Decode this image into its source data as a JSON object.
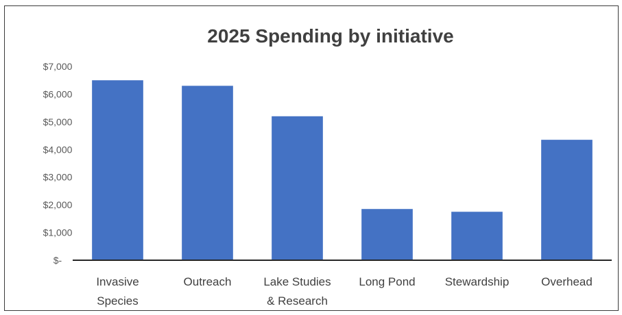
{
  "chart_data": {
    "type": "bar",
    "title": "2025 Spending by initiative",
    "xlabel": "",
    "ylabel": "",
    "categories": [
      [
        "Invasive",
        "Species"
      ],
      [
        "Outreach"
      ],
      [
        "Lake Studies",
        "& Research"
      ],
      [
        "Long Pond"
      ],
      [
        "Stewardship"
      ],
      [
        "Overhead"
      ]
    ],
    "values": [
      6500,
      6300,
      5200,
      1850,
      1750,
      4350
    ],
    "ylim": [
      0,
      7000
    ],
    "yticks": [
      0,
      1000,
      2000,
      3000,
      4000,
      5000,
      6000,
      7000
    ],
    "ytick_labels": [
      "$-",
      "$1,000",
      "$2,000",
      "$3,000",
      "$4,000",
      "$5,000",
      "$6,000",
      "$7,000"
    ],
    "grid": false,
    "legend": "none",
    "colors": {
      "bar": "#4472C4",
      "axis": "#262626",
      "title": "#404040",
      "tick": "#595959"
    }
  }
}
